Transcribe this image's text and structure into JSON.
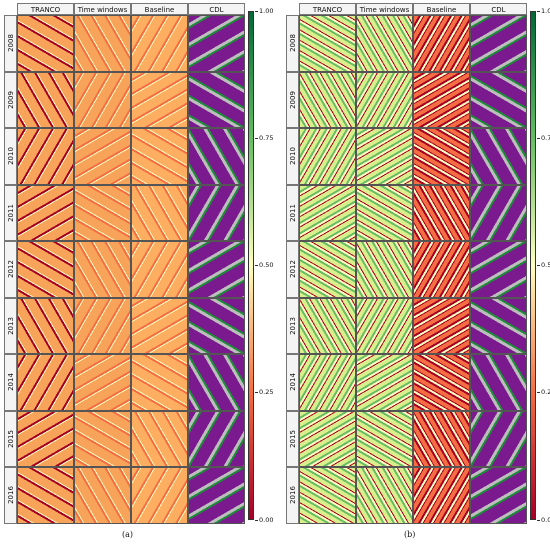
{
  "columns": [
    "TRANCO",
    "Time windows",
    "Baseline",
    "CDL"
  ],
  "years": [
    "2008",
    "2009",
    "2010",
    "2011",
    "2012",
    "2013",
    "2014",
    "2015",
    "2016"
  ],
  "colorbar": {
    "ticks": [
      "1.00",
      "0.75",
      "0.50",
      "0.25",
      "0.00"
    ],
    "colors": {
      "high": "#006837",
      "upper_mid": "#66bd63",
      "mid": "#ffffbf",
      "lower_mid": "#f46d43",
      "low": "#a50026"
    }
  },
  "cdl_colors": {
    "purple": "#7b1a8f",
    "green": "#1f8a3a",
    "grey": "#bdbdbd"
  },
  "panels": [
    {
      "caption": "(a)",
      "tone": "orange-red"
    },
    {
      "caption": "(b)",
      "tone": "green-yellow"
    }
  ]
}
